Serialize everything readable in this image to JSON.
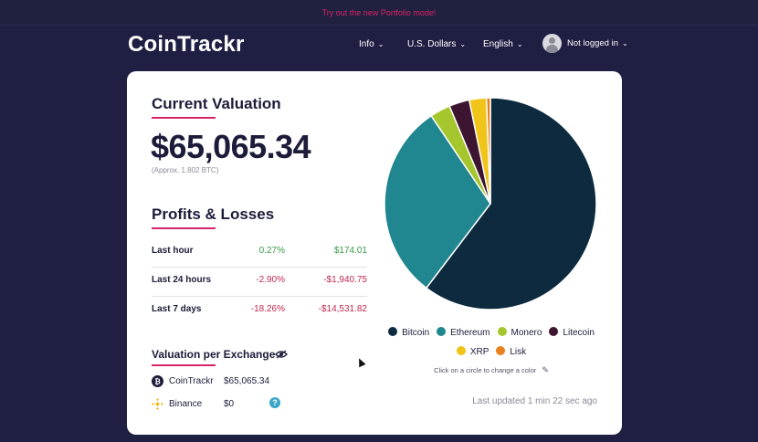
{
  "banner": "Try out the new Portfolio mode!",
  "brand": "CoinTrackr",
  "nav": {
    "info": "Info",
    "currency": "U.S. Dollars",
    "language": "English",
    "user": "Not logged in"
  },
  "valuation": {
    "title": "Current Valuation",
    "amount": "$65,065.34",
    "approx": "(Approx. 1.802 BTC)"
  },
  "profits": {
    "title": "Profits & Losses",
    "rows": [
      {
        "label": "Last hour",
        "pct": "0.27%",
        "value": "$174.01"
      },
      {
        "label": "Last 24 hours",
        "pct": "-2.90%",
        "value": "-$1,940.75"
      },
      {
        "label": "Last 7 days",
        "pct": "-18.26%",
        "value": "-$14,531.82"
      }
    ]
  },
  "exchanges": {
    "title": "Valuation per Exchange",
    "rows": [
      {
        "name": "CoinTrackr",
        "amount": "$65,065.34"
      },
      {
        "name": "Binance",
        "amount": "$0"
      }
    ],
    "help": "?"
  },
  "chart_data": {
    "type": "pie",
    "series": [
      {
        "name": "Bitcoin",
        "value": 0.601,
        "color": "#0d2a3f"
      },
      {
        "name": "Ethereum",
        "value": 0.301,
        "color": "#20868f"
      },
      {
        "name": "Monero",
        "value": 0.031,
        "color": "#a6c62d"
      },
      {
        "name": "Litecoin",
        "value": 0.031,
        "color": "#3d1530"
      },
      {
        "name": "XRP",
        "value": 0.026,
        "color": "#f0c419"
      },
      {
        "name": "Lisk",
        "value": 0.006,
        "color": "#e8821c"
      }
    ]
  },
  "hint": "Click on a circle to change a color",
  "updated": "Last updated 1 min 22 sec ago"
}
